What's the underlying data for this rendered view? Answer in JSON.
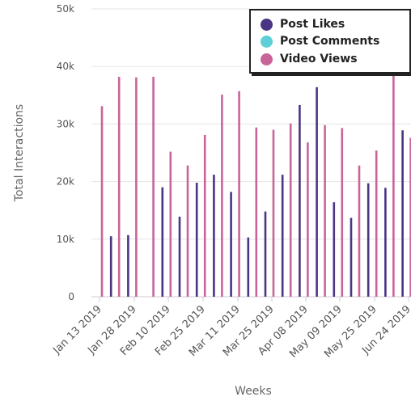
{
  "chart_data": {
    "type": "bar",
    "xlabel": "Weeks",
    "ylabel": "Total Interactions",
    "ylim": [
      0,
      50000
    ],
    "yticks": [
      "0",
      "10k",
      "20k",
      "30k",
      "40k",
      "50k"
    ],
    "x_tick_labels": [
      "Jan 13 2019",
      "Jan 28 2019",
      "Feb 10 2019",
      "Feb 25 2019",
      "Mar 11 2019",
      "Mar 25 2019",
      "Apr 08 2019",
      "May 09 2019",
      "May 25 2019",
      "Jun 24 2019"
    ],
    "legend_position": "top-right",
    "grid": true,
    "series": [
      {
        "name": "Post Likes",
        "color": "#4a3585",
        "values": [
          null,
          10500,
          10700,
          null,
          19000,
          13900,
          19800,
          21200,
          18200,
          10300,
          14800,
          21200,
          33300,
          36400,
          16400,
          13700,
          19700,
          18900,
          28900
        ]
      },
      {
        "name": "Post Comments",
        "color": "#5ecfd6",
        "values": []
      },
      {
        "name": "Video Views",
        "color": "#c9649a",
        "values": [
          33100,
          38200,
          38100,
          38200,
          25200,
          22800,
          28100,
          35100,
          35700,
          29400,
          29000,
          30100,
          26800,
          29800,
          29300,
          22800,
          25400,
          38800,
          27600
        ]
      }
    ]
  }
}
